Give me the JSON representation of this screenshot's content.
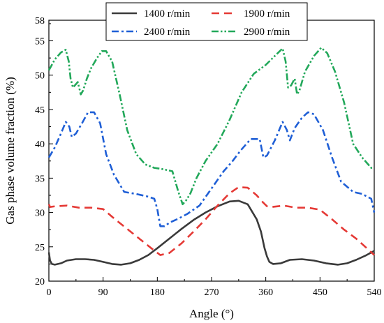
{
  "chart_data": {
    "type": "line",
    "xlabel": "Angle (°)",
    "ylabel": "Gas phase volume fraction (%)",
    "xlim": [
      0,
      540
    ],
    "ylim": [
      20,
      58
    ],
    "xticks": [
      0,
      90,
      180,
      270,
      360,
      450,
      540
    ],
    "yticks": [
      20,
      25,
      30,
      35,
      40,
      45,
      50,
      55,
      58
    ],
    "grid": false,
    "legend": "top",
    "series": [
      {
        "name": "1400 r/min",
        "color": "#3a3a3a",
        "dash": "solid",
        "x": [
          0,
          2,
          5,
          10,
          20,
          30,
          45,
          60,
          75,
          90,
          105,
          120,
          135,
          150,
          165,
          180,
          200,
          220,
          240,
          260,
          280,
          300,
          315,
          330,
          345,
          352,
          358,
          362,
          366,
          372,
          385,
          400,
          420,
          440,
          460,
          480,
          495,
          510,
          525,
          540
        ],
        "y": [
          24.2,
          23.0,
          22.5,
          22.4,
          22.6,
          23.0,
          23.2,
          23.2,
          23.1,
          22.8,
          22.5,
          22.4,
          22.6,
          23.1,
          23.8,
          24.8,
          26.2,
          27.6,
          28.9,
          30.0,
          30.9,
          31.6,
          31.7,
          31.2,
          29.0,
          27.2,
          24.8,
          23.6,
          22.8,
          22.5,
          22.6,
          23.1,
          23.2,
          23.0,
          22.6,
          22.4,
          22.6,
          23.1,
          23.7,
          24.4
        ]
      },
      {
        "name": "1900 r/min",
        "color": "#e53935",
        "dash": "dash",
        "x": [
          0,
          2,
          10,
          30,
          50,
          70,
          90,
          110,
          130,
          150,
          170,
          185,
          200,
          220,
          240,
          260,
          280,
          300,
          315,
          330,
          345,
          355,
          362,
          370,
          390,
          410,
          430,
          450,
          470,
          490,
          510,
          530,
          540
        ],
        "y": [
          31.2,
          30.8,
          30.9,
          31.0,
          30.7,
          30.7,
          30.5,
          29.0,
          27.6,
          26.2,
          24.8,
          23.8,
          24.1,
          25.5,
          27.2,
          29.0,
          31.0,
          32.8,
          33.7,
          33.6,
          32.5,
          31.5,
          30.9,
          30.8,
          31.0,
          30.7,
          30.7,
          30.4,
          29.0,
          27.5,
          26.2,
          24.6,
          23.8
        ]
      },
      {
        "name": "2400 r/min",
        "color": "#1f5fd6",
        "dash": "dashdot",
        "x": [
          0,
          10,
          20,
          28,
          34,
          38,
          45,
          55,
          65,
          75,
          85,
          95,
          108,
          125,
          145,
          165,
          175,
          180,
          185,
          192,
          200,
          215,
          230,
          250,
          270,
          290,
          305,
          318,
          335,
          350,
          356,
          362,
          375,
          388,
          395,
          400,
          408,
          420,
          430,
          440,
          455,
          470,
          485,
          505,
          520,
          535,
          540
        ],
        "y": [
          38.0,
          39.5,
          41.5,
          43.2,
          42.5,
          41.0,
          41.5,
          43.0,
          44.6,
          44.6,
          43.0,
          38.5,
          35.5,
          33.0,
          32.7,
          32.3,
          32.0,
          30.5,
          28.0,
          28.0,
          28.5,
          29.1,
          29.8,
          31.0,
          33.5,
          36.0,
          37.5,
          39.0,
          40.7,
          40.7,
          38.0,
          38.3,
          40.5,
          43.2,
          42.0,
          40.5,
          42.3,
          43.8,
          44.6,
          44.3,
          42.0,
          38.0,
          34.5,
          33.0,
          32.7,
          32.0,
          30.0
        ]
      },
      {
        "name": "2900 r/min",
        "color": "#22a85a",
        "dash": "dashdotdot",
        "x": [
          0,
          10,
          20,
          28,
          33,
          36,
          40,
          48,
          53,
          57,
          63,
          70,
          80,
          88,
          95,
          105,
          118,
          130,
          145,
          160,
          175,
          190,
          205,
          215,
          222,
          228,
          235,
          245,
          260,
          280,
          300,
          320,
          340,
          360,
          375,
          388,
          393,
          397,
          402,
          408,
          412,
          416,
          425,
          440,
          452,
          462,
          475,
          490,
          505,
          520,
          535,
          540
        ],
        "y": [
          50.7,
          52.3,
          53.3,
          53.7,
          52.0,
          49.5,
          48.2,
          49.0,
          47.2,
          47.8,
          49.5,
          51.0,
          52.5,
          53.5,
          53.5,
          52.0,
          47.0,
          42.0,
          38.5,
          37.0,
          36.5,
          36.3,
          36.0,
          33.0,
          31.2,
          31.8,
          32.8,
          35.0,
          37.5,
          40.0,
          43.5,
          47.5,
          50.2,
          51.5,
          52.8,
          53.9,
          52.0,
          48.2,
          48.5,
          49.5,
          47.2,
          47.8,
          50.5,
          52.8,
          54.0,
          53.2,
          50.5,
          46.0,
          40.0,
          38.0,
          36.5,
          36.5
        ]
      }
    ]
  }
}
